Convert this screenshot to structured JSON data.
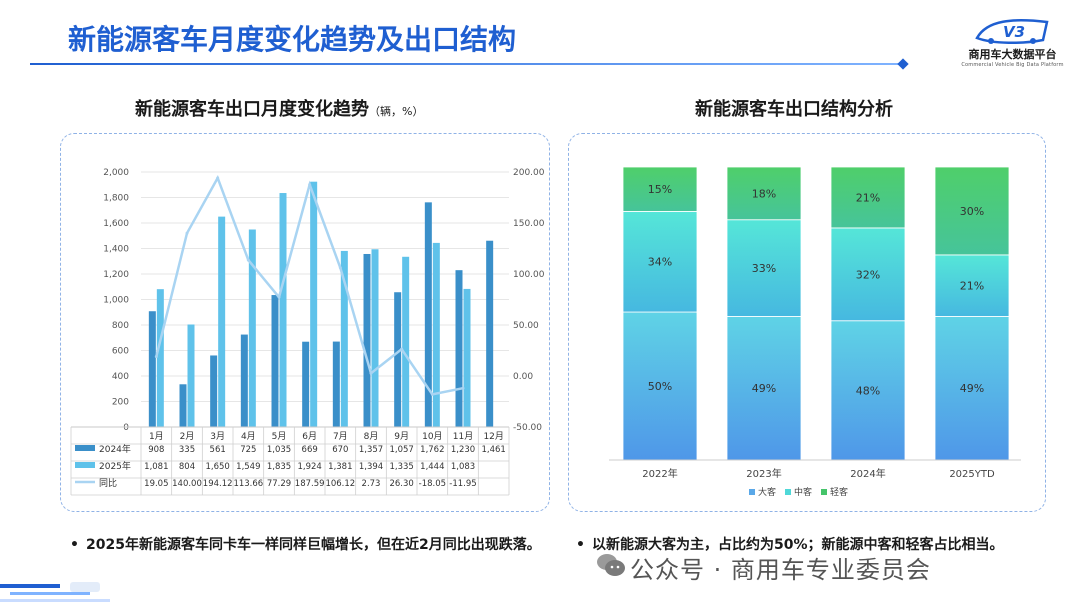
{
  "page": {
    "title": "新能源客车月度变化趋势及出口结构"
  },
  "logo": {
    "name": "商用车大数据平台",
    "subtitle": "Commercial Vehicle Big Data Platform",
    "mark": "V3"
  },
  "watermark": {
    "text": "公众号 · 商用车专业委员会"
  },
  "colors": {
    "title_blue": "#1f5fd1",
    "series_2024": "#3a8fc9",
    "series_2025": "#5fc2ea",
    "yoy_line": "#a9d4f2",
    "big_bus": "#5aa8e8",
    "mid_bus": "#4fd8d8",
    "light_bus": "#45c46a"
  },
  "left_chart": {
    "title": "新能源客车出口月度变化趋势",
    "unit": "（辆，%）"
  },
  "right_chart": {
    "title": "新能源客车出口结构分析"
  },
  "notes": {
    "left": "2025年新能源客车同卡车一样同样巨幅增长，但在近2月同比出现跌落。",
    "right": "以新能源大客为主，占比约为50%；新能源中客和轻客占比相当。"
  },
  "chart_data": [
    {
      "type": "bar",
      "title": "新能源客车出口月度变化趋势（辆，%）",
      "categories": [
        "1月",
        "2月",
        "3月",
        "4月",
        "5月",
        "6月",
        "7月",
        "8月",
        "9月",
        "10月",
        "11月",
        "12月"
      ],
      "series": [
        {
          "name": "2024年",
          "type": "bar",
          "axis": "left",
          "values": [
            908,
            335,
            561,
            725,
            1035,
            669,
            670,
            1357,
            1057,
            1762,
            1230,
            1461
          ],
          "labels": [
            "908",
            "335",
            "561",
            "725",
            "1,035",
            "669",
            "670",
            "1,357",
            "1,057",
            "1,762",
            "1,230",
            "1,461"
          ]
        },
        {
          "name": "2025年",
          "type": "bar",
          "axis": "left",
          "values": [
            1081,
            804,
            1650,
            1549,
            1835,
            1924,
            1381,
            1394,
            1335,
            1444,
            1083,
            null
          ],
          "labels": [
            "1,081",
            "804",
            "1,650",
            "1,549",
            "1,835",
            "1,924",
            "1,381",
            "1,394",
            "1,335",
            "1,444",
            "1,083",
            ""
          ]
        },
        {
          "name": "同比",
          "type": "line",
          "axis": "right",
          "values": [
            19.05,
            140.0,
            194.12,
            113.66,
            77.29,
            187.59,
            106.12,
            2.73,
            26.3,
            -18.05,
            -11.95,
            null
          ],
          "labels": [
            "19.05",
            "140.00",
            "194.12",
            "113.66",
            "77.29",
            "187.59",
            "106.12",
            "2.73",
            "26.30",
            "-18.05",
            "-11.95",
            ""
          ]
        }
      ],
      "y_left": {
        "min": 0,
        "max": 2000,
        "ticks": [
          "0",
          "200",
          "400",
          "600",
          "800",
          "1,000",
          "1,200",
          "1,400",
          "1,600",
          "1,800",
          "2,000"
        ]
      },
      "y_right": {
        "min": -50,
        "max": 200,
        "ticks": [
          "-50.00",
          "0.00",
          "50.00",
          "100.00",
          "150.00",
          "200.00"
        ]
      },
      "grid": true
    },
    {
      "type": "bar",
      "stacked": true,
      "percent": true,
      "title": "新能源客车出口结构分析",
      "categories": [
        "2022年",
        "2023年",
        "2024年",
        "2025YTD"
      ],
      "series": [
        {
          "name": "大客",
          "values": [
            50,
            49,
            48,
            49
          ],
          "labels": [
            "50%",
            "49%",
            "48%",
            "49%"
          ]
        },
        {
          "name": "中客",
          "values": [
            34,
            33,
            32,
            21
          ],
          "labels": [
            "34%",
            "33%",
            "32%",
            "21%"
          ]
        },
        {
          "name": "轻客",
          "values": [
            15,
            18,
            21,
            30
          ],
          "labels": [
            "15%",
            "18%",
            "21%",
            "30%"
          ]
        }
      ],
      "legend": "bottom"
    }
  ]
}
